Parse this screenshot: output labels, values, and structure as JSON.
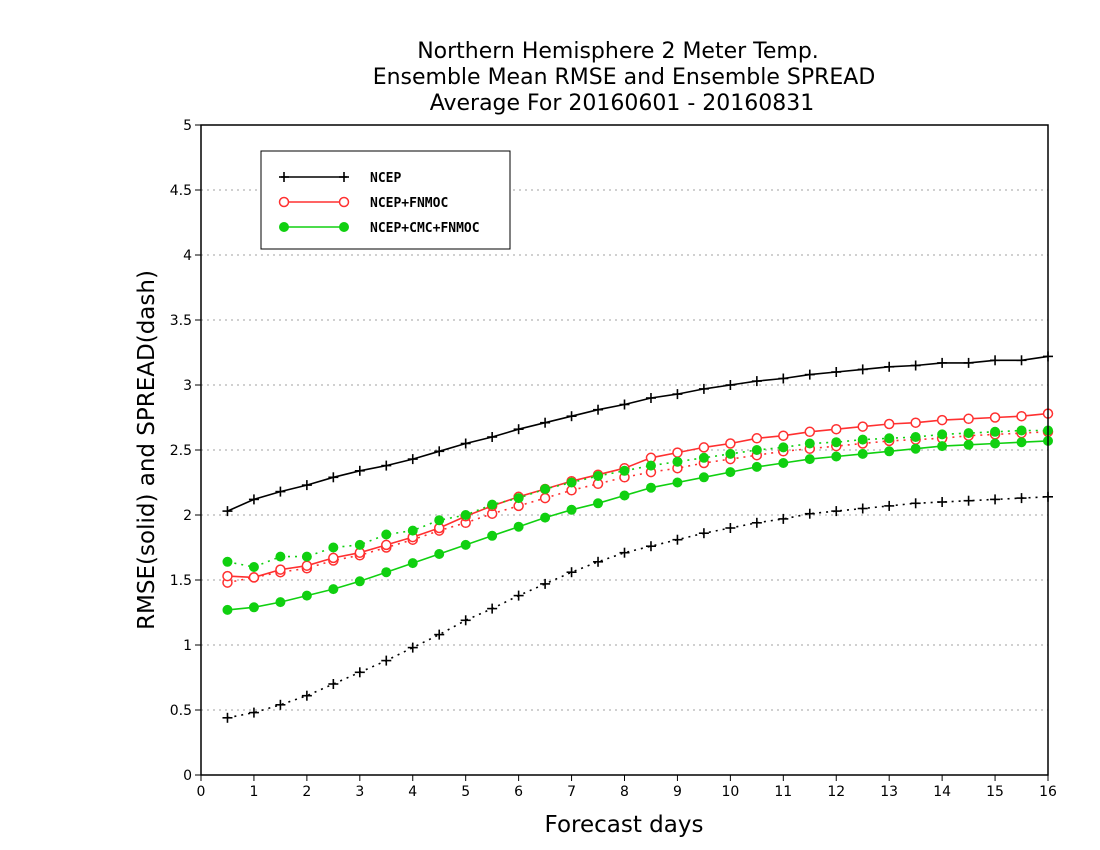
{
  "chart_data": {
    "type": "line",
    "title": [
      "Northern Hemisphere 2 Meter Temp.",
      "Ensemble Mean RMSE and Ensemble SPREAD",
      "Average For 20160601 - 20160831"
    ],
    "xlabel": "Forecast days",
    "ylabel": "RMSE(solid) and SPREAD(dash)",
    "xlim": [
      0,
      16
    ],
    "ylim": [
      0,
      5
    ],
    "x_ticks": [
      0,
      1,
      2,
      3,
      4,
      5,
      6,
      7,
      8,
      9,
      10,
      11,
      12,
      13,
      14,
      15,
      16
    ],
    "y_ticks": [
      0,
      0.5,
      1,
      1.5,
      2,
      2.5,
      3,
      3.5,
      4,
      4.5,
      5
    ],
    "y_tick_labels": [
      "0",
      "0.5",
      "1",
      "1.5",
      "2",
      "2.5",
      "3",
      "3.5",
      "4",
      "4.5",
      "5"
    ],
    "grid": "horizontal dotted",
    "legend_position": "top-left",
    "x": [
      0.5,
      1,
      1.5,
      2,
      2.5,
      3,
      3.5,
      4,
      4.5,
      5,
      5.5,
      6,
      6.5,
      7,
      7.5,
      8,
      8.5,
      9,
      9.5,
      10,
      10.5,
      11,
      11.5,
      12,
      12.5,
      13,
      13.5,
      14,
      14.5,
      15,
      15.5,
      16
    ],
    "series": [
      {
        "name": "NCEP",
        "color": "#000000",
        "marker": "plus",
        "rmse": [
          2.03,
          2.12,
          2.18,
          2.23,
          2.29,
          2.34,
          2.38,
          2.43,
          2.49,
          2.55,
          2.6,
          2.66,
          2.71,
          2.76,
          2.81,
          2.85,
          2.9,
          2.93,
          2.97,
          3.0,
          3.03,
          3.05,
          3.08,
          3.1,
          3.12,
          3.14,
          3.15,
          3.17,
          3.17,
          3.19,
          3.19,
          3.22
        ],
        "spread": [
          0.44,
          0.48,
          0.54,
          0.61,
          0.7,
          0.79,
          0.88,
          0.98,
          1.08,
          1.19,
          1.28,
          1.38,
          1.47,
          1.56,
          1.64,
          1.71,
          1.76,
          1.81,
          1.86,
          1.9,
          1.94,
          1.97,
          2.01,
          2.03,
          2.05,
          2.07,
          2.09,
          2.1,
          2.11,
          2.12,
          2.13,
          2.14
        ]
      },
      {
        "name": "NCEP+FNMOC",
        "color": "#ff3030",
        "marker": "open-circle",
        "rmse": [
          1.53,
          1.52,
          1.58,
          1.61,
          1.67,
          1.71,
          1.77,
          1.83,
          1.9,
          1.99,
          2.07,
          2.14,
          2.2,
          2.26,
          2.31,
          2.36,
          2.44,
          2.48,
          2.52,
          2.55,
          2.59,
          2.61,
          2.64,
          2.66,
          2.68,
          2.7,
          2.71,
          2.73,
          2.74,
          2.75,
          2.76,
          2.78
        ],
        "spread": [
          1.48,
          1.52,
          1.56,
          1.59,
          1.65,
          1.69,
          1.75,
          1.81,
          1.88,
          1.94,
          2.01,
          2.07,
          2.13,
          2.19,
          2.24,
          2.29,
          2.33,
          2.36,
          2.4,
          2.43,
          2.46,
          2.49,
          2.51,
          2.53,
          2.55,
          2.57,
          2.58,
          2.59,
          2.61,
          2.62,
          2.63,
          2.64
        ]
      },
      {
        "name": "NCEP+CMC+FNMOC",
        "color": "#10d010",
        "marker": "filled-circle",
        "rmse": [
          1.27,
          1.29,
          1.33,
          1.38,
          1.43,
          1.49,
          1.56,
          1.63,
          1.7,
          1.77,
          1.84,
          1.91,
          1.98,
          2.04,
          2.09,
          2.15,
          2.21,
          2.25,
          2.29,
          2.33,
          2.37,
          2.4,
          2.43,
          2.45,
          2.47,
          2.49,
          2.51,
          2.53,
          2.54,
          2.55,
          2.56,
          2.57
        ],
        "spread": [
          1.64,
          1.6,
          1.68,
          1.68,
          1.75,
          1.77,
          1.85,
          1.88,
          1.96,
          2.0,
          2.08,
          2.13,
          2.2,
          2.25,
          2.3,
          2.34,
          2.38,
          2.41,
          2.44,
          2.47,
          2.5,
          2.52,
          2.55,
          2.56,
          2.58,
          2.59,
          2.6,
          2.62,
          2.63,
          2.64,
          2.65,
          2.65
        ]
      }
    ]
  }
}
